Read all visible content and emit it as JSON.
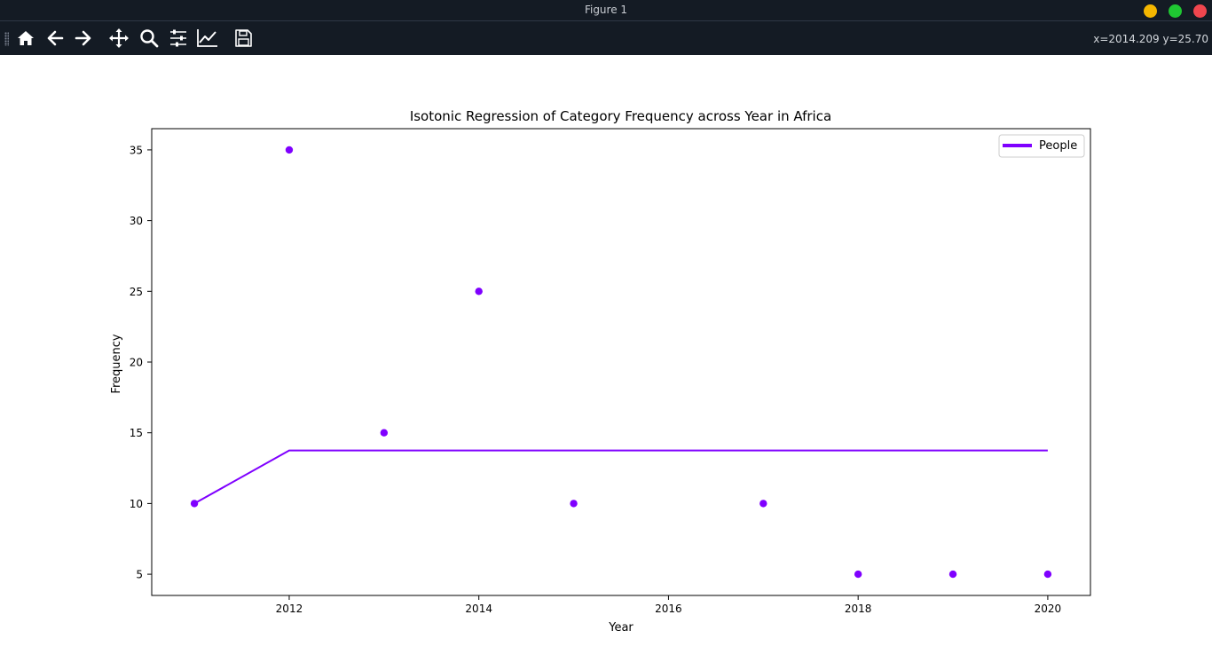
{
  "window": {
    "title": "Figure 1",
    "controls": {
      "minimize_color": "#f5b700",
      "maximize_color": "#1fc732",
      "close_color": "#f0464e"
    }
  },
  "toolbar": {
    "buttons": [
      {
        "name": "home",
        "icon": "home-icon"
      },
      {
        "name": "back",
        "icon": "arrow-left-icon"
      },
      {
        "name": "forward",
        "icon": "arrow-right-icon"
      },
      {
        "name": "pan",
        "icon": "move-icon"
      },
      {
        "name": "zoom",
        "icon": "magnifier-icon"
      },
      {
        "name": "configure-subplots",
        "icon": "sliders-icon"
      },
      {
        "name": "edit-axes",
        "icon": "line-chart-icon"
      },
      {
        "name": "save",
        "icon": "floppy-disk-icon"
      }
    ],
    "coords": "x=2014.209 y=25.70"
  },
  "chart_data": {
    "type": "scatter",
    "title": "Isotonic Regression of Category Frequency across Year in Africa",
    "xlabel": "Year",
    "ylabel": "Frequency",
    "xlim": [
      2010.55,
      2020.45
    ],
    "ylim": [
      3.5,
      36.5
    ],
    "xticks": [
      2012,
      2014,
      2016,
      2018,
      2020
    ],
    "yticks": [
      5,
      10,
      15,
      20,
      25,
      30,
      35
    ],
    "points": {
      "x": [
        2011,
        2012,
        2013,
        2014,
        2015,
        2017,
        2018,
        2019,
        2020
      ],
      "y": [
        10,
        35,
        15,
        25,
        10,
        10,
        5,
        5,
        5
      ]
    },
    "series": [
      {
        "name": "People",
        "type": "line",
        "color": "#7f00ff",
        "x": [
          2011,
          2012,
          2013,
          2014,
          2015,
          2017,
          2018,
          2019,
          2020
        ],
        "y": [
          10,
          13.75,
          13.75,
          13.75,
          13.75,
          13.75,
          13.75,
          13.75,
          13.75
        ]
      }
    ],
    "marker_color": "#7f00ff",
    "legend": {
      "position": "top-right",
      "entries": [
        "People"
      ]
    },
    "grid": false
  }
}
